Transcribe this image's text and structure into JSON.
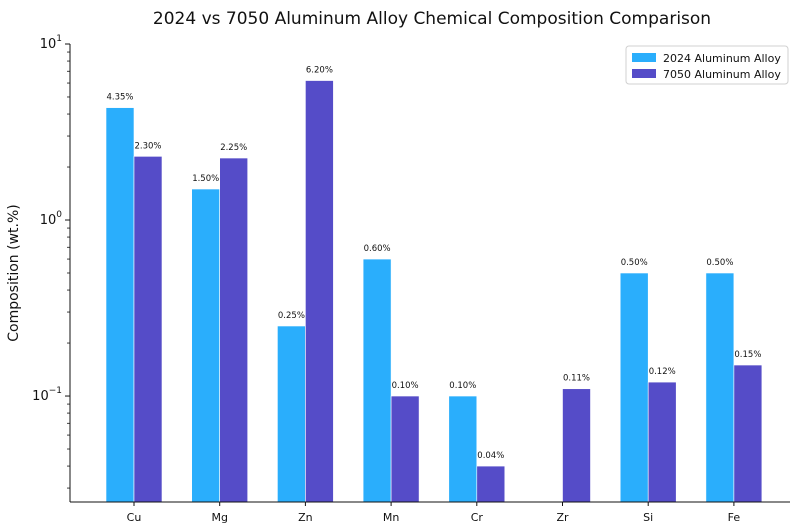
{
  "chart_data": {
    "type": "bar",
    "title": "2024 vs 7050 Aluminum Alloy Chemical Composition Comparison",
    "xlabel": "",
    "ylabel": "Composition (wt.%)",
    "yscale": "log",
    "ylim": [
      0.025,
      10
    ],
    "yticks": [
      {
        "value": 10,
        "base": "10",
        "exp": "1"
      },
      {
        "value": 1,
        "base": "10",
        "exp": "0"
      },
      {
        "value": 0.1,
        "base": "10",
        "exp": "−1"
      }
    ],
    "categories": [
      "Cu",
      "Mg",
      "Zn",
      "Mn",
      "Cr",
      "Zr",
      "Si",
      "Fe"
    ],
    "series": [
      {
        "name": "2024 Aluminum Alloy",
        "color": "#2aaefc",
        "values": [
          4.35,
          1.5,
          0.25,
          0.6,
          0.1,
          null,
          0.5,
          0.5
        ],
        "labels": [
          "4.35%",
          "1.50%",
          "0.25%",
          "0.60%",
          "0.10%",
          "",
          "0.50%",
          "0.50%"
        ]
      },
      {
        "name": "7050 Aluminum Alloy",
        "color": "#554cc8",
        "values": [
          2.3,
          2.25,
          6.2,
          0.1,
          0.04,
          0.11,
          0.12,
          0.15
        ],
        "labels": [
          "2.30%",
          "2.25%",
          "6.20%",
          "0.10%",
          "0.04%",
          "0.11%",
          "0.12%",
          "0.15%"
        ]
      }
    ],
    "legend": "top-right",
    "grid": false
  }
}
